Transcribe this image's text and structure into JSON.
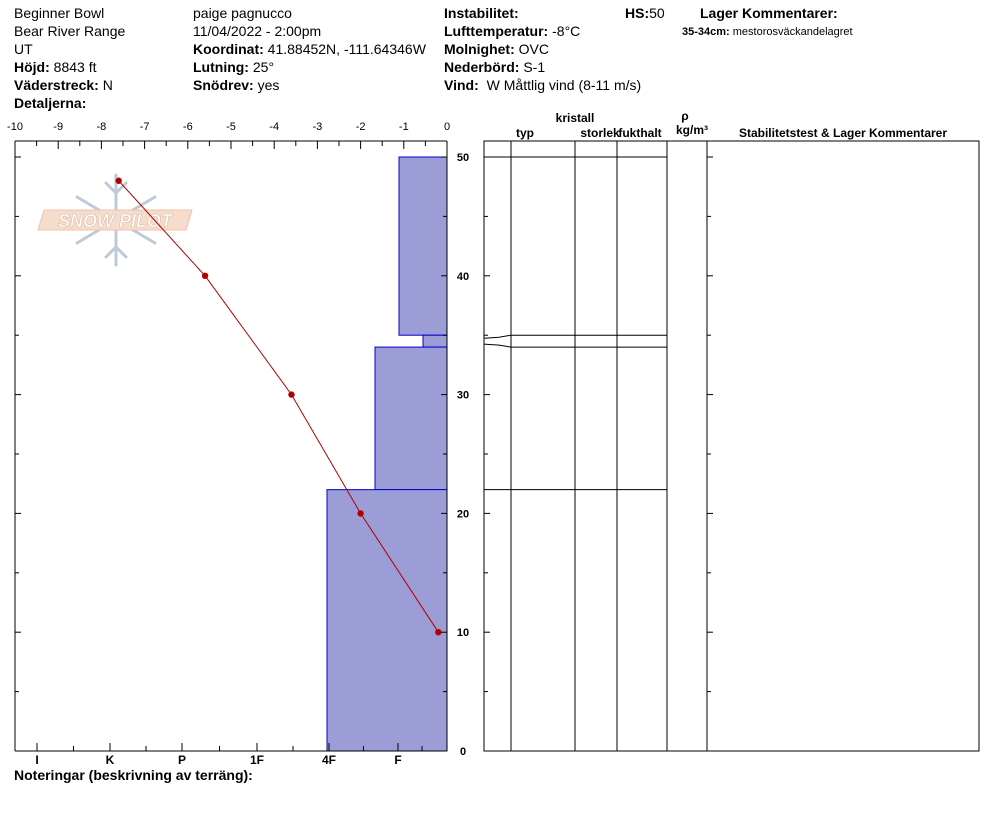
{
  "header": {
    "location": "Beginner Bowl",
    "range": "Bear River Range",
    "state": "UT",
    "elevation_label": "Höjd:",
    "elevation_value": "8843 ft",
    "aspect_label": "Väderstreck:",
    "aspect_value": "N",
    "details_label": "Detaljerna:",
    "observer": "paige pagnucco",
    "datetime": "11/04/2022 - 2:00pm",
    "coord_label": "Koordinat:",
    "coord_value": "41.88452N, -111.64346W",
    "slope_label": "Lutning:",
    "slope_value": "25°",
    "drift_label": "Snödrev:",
    "drift_value": "yes",
    "instability_label": "Instabilitet:",
    "air_temp_label": "Lufttemperatur:",
    "air_temp_value": "-8°C",
    "cloud_label": "Molnighet:",
    "cloud_value": "OVC",
    "precip_label": "Nederbörd:",
    "precip_value": "S-1",
    "wind_label": "Vind:",
    "wind_value": "W Måttlig vind (8-11 m/s)",
    "hs_label": "HS:",
    "hs_value": "50",
    "layer_comments_label": "Lager Kommentarer:",
    "layer_comment_depth": "35-34cm:",
    "layer_comment_text": "mestorosväckandelagret"
  },
  "watermark": {
    "text": "SNOW PILOT"
  },
  "table_headers": {
    "crystal": "kristall",
    "type": "typ",
    "size": "storlek",
    "moisture": "fukthalt",
    "rho": "ρ",
    "density_unit": "kg/m³",
    "stability": "Stabilitetstest & Lager Kommentarer"
  },
  "footer": {
    "notes_label": "Noteringar (beskrivning av terräng):"
  },
  "colors": {
    "hardness_fill": "#9c9cd6",
    "hardness_stroke": "#0000cc",
    "temp_line": "#b00000"
  },
  "chart_data": {
    "type": "snow_profile",
    "temperature_axis": {
      "range": [
        -10,
        0
      ],
      "ticks": [
        "-10",
        "-9",
        "-8",
        "-7",
        "-6",
        "-5",
        "-4",
        "-3",
        "-2",
        "-1",
        "0"
      ]
    },
    "depth_axis": {
      "range": [
        0,
        50
      ],
      "ticks": [
        "50",
        "40",
        "30",
        "20",
        "10",
        "0"
      ]
    },
    "hardness_axis": {
      "ticks": [
        "I",
        "K",
        "P",
        "1F",
        "4F",
        "F"
      ]
    },
    "hardness_layers": [
      {
        "top": 50,
        "bottom": 35,
        "hardness_index": 1.0
      },
      {
        "top": 35,
        "bottom": 34,
        "hardness_index": 0.5
      },
      {
        "top": 34,
        "bottom": 22,
        "hardness_index": 1.5
      },
      {
        "top": 22,
        "bottom": 0,
        "hardness_index": 2.5
      }
    ],
    "temperature_profile": [
      {
        "depth": 48,
        "temp": -7.6
      },
      {
        "depth": 40,
        "temp": -5.6
      },
      {
        "depth": 30,
        "temp": -3.6
      },
      {
        "depth": 20,
        "temp": -2.0
      },
      {
        "depth": 10,
        "temp": -0.2
      }
    ],
    "layer_boundaries": [
      50,
      35,
      34,
      22
    ]
  }
}
